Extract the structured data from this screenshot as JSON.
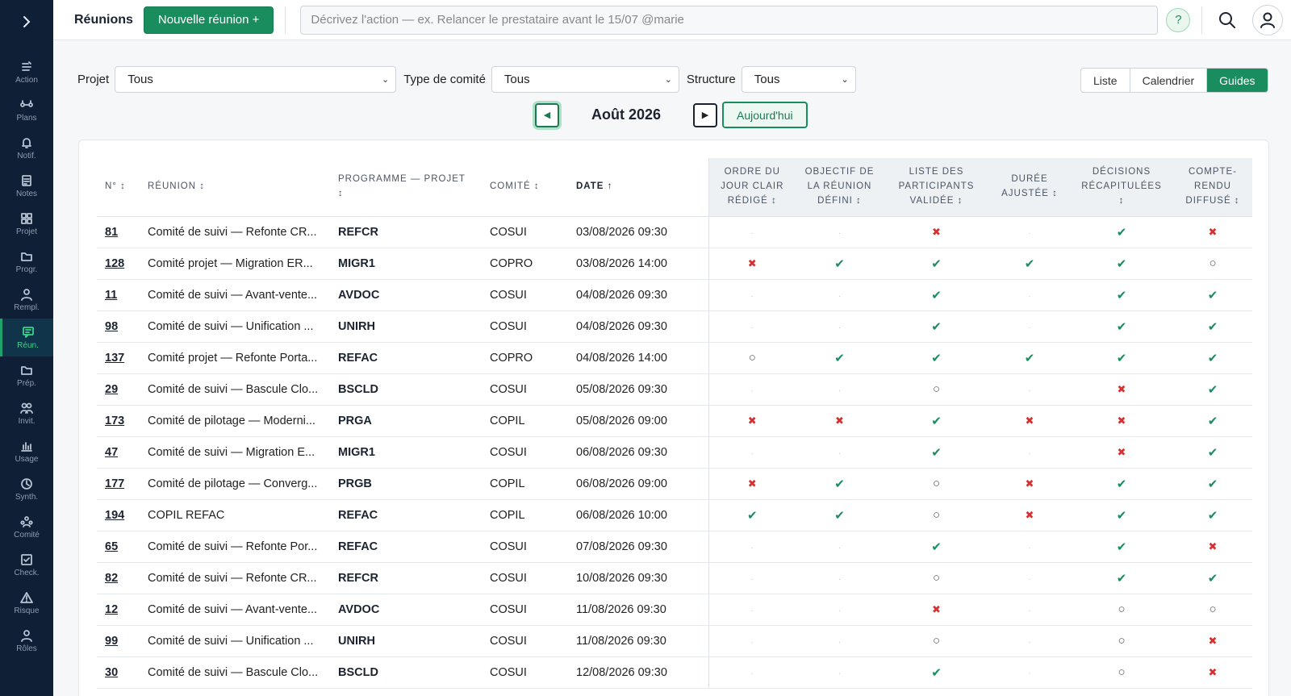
{
  "sidebar": {
    "items": [
      {
        "label": "Action",
        "icon": "action-icon"
      },
      {
        "label": "Plans",
        "icon": "plans-icon"
      },
      {
        "label": "Notif.",
        "icon": "bell-icon"
      },
      {
        "label": "Notes",
        "icon": "notes-icon"
      },
      {
        "label": "Projet",
        "icon": "grid-icon"
      },
      {
        "label": "Progr.",
        "icon": "folder-icon"
      },
      {
        "label": "Rempl.",
        "icon": "person-icon"
      },
      {
        "label": "Réun.",
        "icon": "chat-icon",
        "active": true
      },
      {
        "label": "Prép.",
        "icon": "folder-icon"
      },
      {
        "label": "Invit.",
        "icon": "people-icon"
      },
      {
        "label": "Usage",
        "icon": "bar-chart-icon"
      },
      {
        "label": "Synth.",
        "icon": "clock-icon"
      },
      {
        "label": "Comité",
        "icon": "committee-icon"
      },
      {
        "label": "Check.",
        "icon": "checkbox-icon"
      },
      {
        "label": "Risque",
        "icon": "warning-icon"
      },
      {
        "label": "Rôles",
        "icon": "person-icon"
      }
    ]
  },
  "topbar": {
    "title": "Réunions",
    "new_button": "Nouvelle réunion +",
    "action_placeholder": "Décrivez l'action — ex. Relancer le prestataire avant le 15/07 @marie",
    "help": "?"
  },
  "filters": {
    "projet_label": "Projet",
    "projet_value": "Tous",
    "type_label": "Type de comité",
    "type_value": "Tous",
    "structure_label": "Structure",
    "structure_value": "Tous"
  },
  "views": {
    "liste": "Liste",
    "calendrier": "Calendrier",
    "guides": "Guides"
  },
  "month_nav": {
    "label": "Août 2026",
    "today": "Aujourd'hui"
  },
  "table": {
    "headers": {
      "num": "N° ↕",
      "reunion": "Réunion ↕",
      "projet": "Programme — Projet ↕",
      "comite": "Comité ↕",
      "date": "Date ↑",
      "g1": "Ordre du jour clair rédigé ↕",
      "g2": "Objectif de la réunion défini ↕",
      "g3": "Liste des participants validée ↕",
      "g4": "Durée ajustée ↕",
      "g5": "Décisions récapitulées ↕",
      "g6": "Compte-rendu diffusé ↕"
    },
    "rows": [
      {
        "num": "81",
        "reunion": "Comité de suivi — Refonte CR...",
        "projet": "REFCR",
        "comite": "COSUI",
        "date": "03/08/2026 09:30",
        "g": [
          "na",
          "na",
          "no",
          "na",
          "yes",
          "no"
        ]
      },
      {
        "num": "128",
        "reunion": "Comité projet — Migration ER...",
        "projet": "MIGR1",
        "comite": "COPRO",
        "date": "03/08/2026 14:00",
        "g": [
          "no",
          "yes",
          "yes",
          "yes",
          "yes",
          "pending"
        ]
      },
      {
        "num": "11",
        "reunion": "Comité de suivi — Avant-vente...",
        "projet": "AVDOC",
        "comite": "COSUI",
        "date": "04/08/2026 09:30",
        "g": [
          "na",
          "na",
          "yes",
          "na",
          "yes",
          "yes"
        ]
      },
      {
        "num": "98",
        "reunion": "Comité de suivi — Unification ...",
        "projet": "UNIRH",
        "comite": "COSUI",
        "date": "04/08/2026 09:30",
        "g": [
          "na",
          "na",
          "yes",
          "na",
          "yes",
          "yes"
        ]
      },
      {
        "num": "137",
        "reunion": "Comité projet — Refonte Porta...",
        "projet": "REFAC",
        "comite": "COPRO",
        "date": "04/08/2026 14:00",
        "g": [
          "pending",
          "yes",
          "yes",
          "yes",
          "yes",
          "yes"
        ]
      },
      {
        "num": "29",
        "reunion": "Comité de suivi — Bascule Clo...",
        "projet": "BSCLD",
        "comite": "COSUI",
        "date": "05/08/2026 09:30",
        "g": [
          "na",
          "na",
          "pending",
          "na",
          "no",
          "yes"
        ]
      },
      {
        "num": "173",
        "reunion": "Comité de pilotage — Moderni...",
        "projet": "PRGA",
        "comite": "COPIL",
        "date": "05/08/2026 09:00",
        "g": [
          "no",
          "no",
          "yes",
          "no",
          "no",
          "yes"
        ]
      },
      {
        "num": "47",
        "reunion": "Comité de suivi — Migration E...",
        "projet": "MIGR1",
        "comite": "COSUI",
        "date": "06/08/2026 09:30",
        "g": [
          "na",
          "na",
          "yes",
          "na",
          "no",
          "yes"
        ]
      },
      {
        "num": "177",
        "reunion": "Comité de pilotage — Converg...",
        "projet": "PRGB",
        "comite": "COPIL",
        "date": "06/08/2026 09:00",
        "g": [
          "no",
          "yes",
          "pending",
          "no",
          "yes",
          "yes"
        ]
      },
      {
        "num": "194",
        "reunion": "COPIL REFAC",
        "projet": "REFAC",
        "comite": "COPIL",
        "date": "06/08/2026 10:00",
        "g": [
          "yes",
          "yes",
          "pending",
          "no",
          "yes",
          "yes"
        ]
      },
      {
        "num": "65",
        "reunion": "Comité de suivi — Refonte Por...",
        "projet": "REFAC",
        "comite": "COSUI",
        "date": "07/08/2026 09:30",
        "g": [
          "na",
          "na",
          "yes",
          "na",
          "yes",
          "no"
        ]
      },
      {
        "num": "82",
        "reunion": "Comité de suivi — Refonte CR...",
        "projet": "REFCR",
        "comite": "COSUI",
        "date": "10/08/2026 09:30",
        "g": [
          "na",
          "na",
          "pending",
          "na",
          "yes",
          "yes"
        ]
      },
      {
        "num": "12",
        "reunion": "Comité de suivi — Avant-vente...",
        "projet": "AVDOC",
        "comite": "COSUI",
        "date": "11/08/2026 09:30",
        "g": [
          "na",
          "na",
          "no",
          "na",
          "pending",
          "pending"
        ]
      },
      {
        "num": "99",
        "reunion": "Comité de suivi — Unification ...",
        "projet": "UNIRH",
        "comite": "COSUI",
        "date": "11/08/2026 09:30",
        "g": [
          "na",
          "na",
          "pending",
          "na",
          "pending",
          "no"
        ]
      },
      {
        "num": "30",
        "reunion": "Comité de suivi — Bascule Clo...",
        "projet": "BSCLD",
        "comite": "COSUI",
        "date": "12/08/2026 09:30",
        "g": [
          "na",
          "na",
          "yes",
          "na",
          "pending",
          "no"
        ]
      }
    ]
  },
  "status_glyphs": {
    "yes": "✔",
    "no": "✖",
    "pending": "○",
    "na": "·"
  },
  "colors": {
    "sidebar": "#0f1f36",
    "accent": "#1a8d5f",
    "danger": "#d63030"
  }
}
